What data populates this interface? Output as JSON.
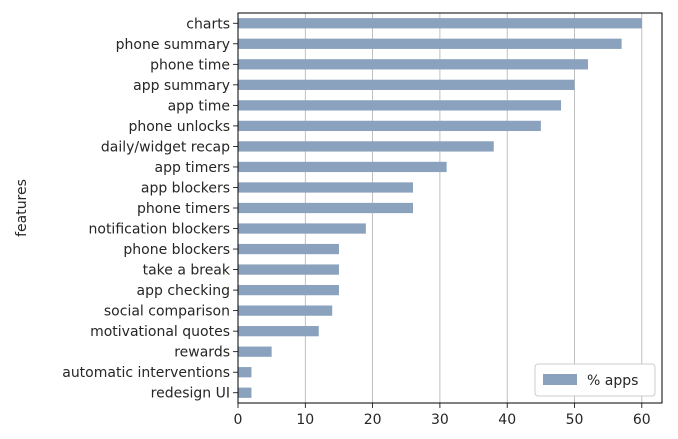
{
  "chart_data": {
    "type": "bar",
    "orientation": "horizontal",
    "title": "",
    "xlabel": "",
    "ylabel": "features",
    "xlim": [
      0,
      63
    ],
    "x_ticks": [
      "0",
      "10",
      "20",
      "30",
      "40",
      "50",
      "60"
    ],
    "grid": true,
    "legend_position": "lower right",
    "categories": [
      "charts",
      "phone summary",
      "phone time",
      "app summary",
      "app time",
      "phone unlocks",
      "daily/widget recap",
      "app timers",
      "app blockers",
      "phone timers",
      "notification blockers",
      "phone blockers",
      "take a break",
      "app checking",
      "social comparison",
      "motivational quotes",
      "rewards",
      "automatic interventions",
      "redesign UI"
    ],
    "series": [
      {
        "name": "% apps",
        "color": "#8aa2bd",
        "values": [
          60,
          57,
          52,
          50,
          48,
          45,
          38,
          31,
          26,
          26,
          19,
          15,
          15,
          15,
          14,
          12,
          5,
          2,
          2
        ]
      }
    ]
  }
}
